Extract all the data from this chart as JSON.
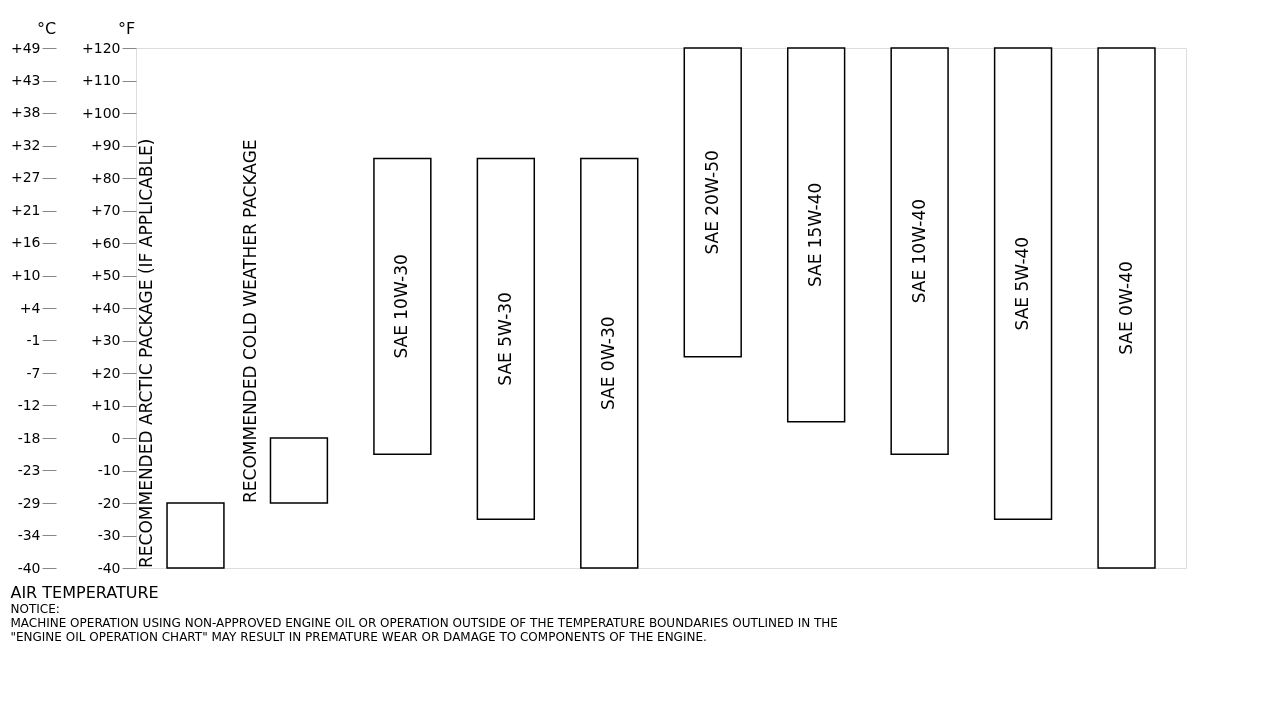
{
  "chart_data": {
    "type": "bar",
    "title": "AIR TEMPERATURE",
    "ylabel": "°F",
    "y2label": "°C",
    "categories": [
      "RECOMMENDED ARCTIC PACKAGE (IF APPLICABLE)",
      "RECOMMENDED COLD WEATHER PACKAGE",
      "SAE 10W-30",
      "SAE 5W-30",
      "SAE 0W-30",
      "SAE 20W-50",
      "SAE 15W-40",
      "SAE 10W-40",
      "SAE 5W-40",
      "SAE 0W-40"
    ],
    "base": [
      -40,
      -20,
      -5,
      -25,
      -40,
      25,
      5,
      -5,
      -25,
      -40
    ],
    "values": [
      20,
      20,
      91,
      111,
      126,
      95,
      115,
      125,
      145,
      160
    ],
    "color": "#ffffff",
    "ylim": [
      -40,
      120
    ],
    "yticks": [
      {
        "value": -40,
        "label": "-40"
      },
      {
        "value": -30,
        "label": "-30"
      },
      {
        "value": -20,
        "label": "-20"
      },
      {
        "value": -10,
        "label": "-10"
      },
      {
        "value": 0,
        "label": "0"
      },
      {
        "value": 10,
        "label": "+10"
      },
      {
        "value": 20,
        "label": "+20"
      },
      {
        "value": 30,
        "label": "+30"
      },
      {
        "value": 40,
        "label": "+40"
      },
      {
        "value": 50,
        "label": "+50"
      },
      {
        "value": 60,
        "label": "+60"
      },
      {
        "value": 70,
        "label": "+70"
      },
      {
        "value": 80,
        "label": "+80"
      },
      {
        "value": 90,
        "label": "+90"
      },
      {
        "value": 100,
        "label": "+100"
      },
      {
        "value": 110,
        "label": "+110"
      },
      {
        "value": 120,
        "label": "+120"
      }
    ],
    "y2lim": [
      -40,
      48.9
    ],
    "y2ticks": [
      {
        "value": -40,
        "label": "-40"
      },
      {
        "value": -34.4,
        "label": "-34"
      },
      {
        "value": -28.9,
        "label": "-29"
      },
      {
        "value": -23.3,
        "label": "-23"
      },
      {
        "value": -17.8,
        "label": "-18"
      },
      {
        "value": -12.2,
        "label": "-12"
      },
      {
        "value": -6.7,
        "label": "-7"
      },
      {
        "value": -1.1,
        "label": "-1"
      },
      {
        "value": 4.4,
        "label": "+4"
      },
      {
        "value": 10,
        "label": "+10"
      },
      {
        "value": 15.6,
        "label": "+16"
      },
      {
        "value": 21.1,
        "label": "+21"
      },
      {
        "value": 26.7,
        "label": "+27"
      },
      {
        "value": 32.2,
        "label": "+32"
      },
      {
        "value": 37.8,
        "label": "+38"
      },
      {
        "value": 43.3,
        "label": "+43"
      },
      {
        "value": 48.9,
        "label": "+49"
      }
    ],
    "annotations": [
      "NOTICE:",
      "MACHINE OPERATION USING NON-APPROVED ENGINE OIL OR OPERATION OUTSIDE OF THE TEMPERATURE BOUNDARIES OUTLINED IN THE",
      "\"ENGINE OIL  OPERATION CHART\" MAY RESULT IN PREMATURE WEAR OR DAMAGE TO COMPONENTS OF THE ENGINE."
    ]
  }
}
